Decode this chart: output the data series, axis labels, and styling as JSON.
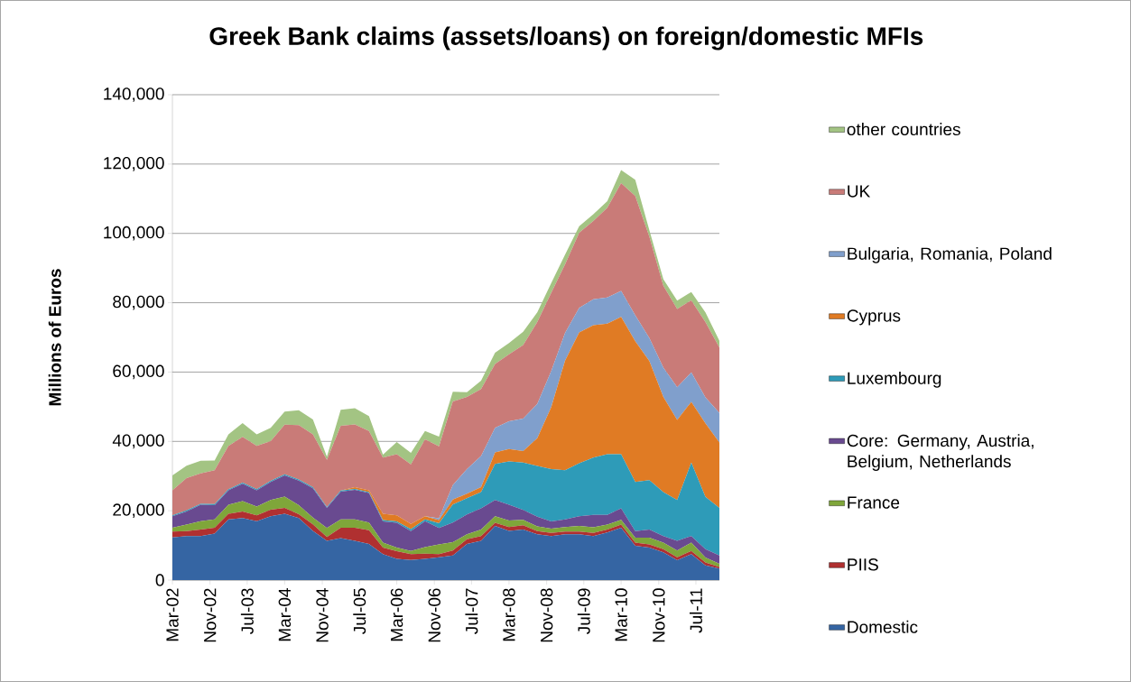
{
  "chart_data": {
    "type": "area",
    "stacked": true,
    "title": "Greek Bank claims (assets/loans) on foreign/domestic MFIs",
    "ylabel": "Millions of Euros",
    "x": [
      "2002-03",
      "2002-06",
      "2002-09",
      "2002-12",
      "2003-03",
      "2003-06",
      "2003-09",
      "2003-12",
      "2004-03",
      "2004-06",
      "2004-09",
      "2004-12",
      "2005-03",
      "2005-06",
      "2005-09",
      "2005-12",
      "2006-03",
      "2006-06",
      "2006-09",
      "2006-12",
      "2007-03",
      "2007-06",
      "2007-09",
      "2007-12",
      "2008-03",
      "2008-06",
      "2008-09",
      "2008-12",
      "2009-03",
      "2009-06",
      "2009-09",
      "2009-12",
      "2010-03",
      "2010-06",
      "2010-09",
      "2010-12",
      "2011-03",
      "2011-06",
      "2011-09",
      "2011-12"
    ],
    "xlim": [
      "2002-03",
      "2011-12"
    ],
    "xticks": [
      {
        "value": "2002-03",
        "label": "Mar-02"
      },
      {
        "value": "2002-11",
        "label": "Nov-02"
      },
      {
        "value": "2003-07",
        "label": "Jul-03"
      },
      {
        "value": "2004-03",
        "label": "Mar-04"
      },
      {
        "value": "2004-11",
        "label": "Nov-04"
      },
      {
        "value": "2005-07",
        "label": "Jul-05"
      },
      {
        "value": "2006-03",
        "label": "Mar-06"
      },
      {
        "value": "2006-11",
        "label": "Nov-06"
      },
      {
        "value": "2007-07",
        "label": "Jul-07"
      },
      {
        "value": "2008-03",
        "label": "Mar-08"
      },
      {
        "value": "2008-11",
        "label": "Nov-08"
      },
      {
        "value": "2009-07",
        "label": "Jul-09"
      },
      {
        "value": "2010-03",
        "label": "Mar-10"
      },
      {
        "value": "2010-11",
        "label": "Nov-10"
      },
      {
        "value": "2011-07",
        "label": "Jul-11"
      }
    ],
    "ylim": [
      0,
      140000
    ],
    "yticks": [
      0,
      {
        "value": 20000,
        "label": "20,000"
      },
      {
        "value": 40000,
        "label": "40,000"
      },
      {
        "value": 60000,
        "label": "60,000"
      },
      {
        "value": 80000,
        "label": "80,000"
      },
      {
        "value": 100000,
        "label": "100,000"
      },
      {
        "value": 120000,
        "label": "120,000"
      },
      {
        "value": 140000,
        "label": "140,000"
      }
    ],
    "grid": "y",
    "legend": "right",
    "series": [
      {
        "name": "Domestic",
        "color": "#3565a3",
        "values": [
          12300,
          12700,
          12700,
          13400,
          17500,
          17900,
          17000,
          18400,
          19100,
          17900,
          14200,
          11300,
          12100,
          11300,
          10400,
          7500,
          6100,
          5800,
          6100,
          6600,
          7100,
          10400,
          11300,
          15600,
          14200,
          14600,
          13200,
          12700,
          13200,
          13200,
          12700,
          13700,
          15100,
          9900,
          9400,
          8000,
          5700,
          7500,
          4200,
          3300
        ]
      },
      {
        "name": "PIIS",
        "color": "#b03030",
        "values": [
          1700,
          1400,
          1900,
          1700,
          1600,
          1900,
          1700,
          1900,
          1700,
          1100,
          1900,
          1100,
          3000,
          3800,
          4000,
          1900,
          2200,
          1700,
          1500,
          900,
          1400,
          1400,
          1400,
          900,
          1100,
          1200,
          900,
          900,
          800,
          800,
          900,
          900,
          900,
          900,
          900,
          900,
          900,
          900,
          900,
          500
        ]
      },
      {
        "name": "France",
        "color": "#7fa63a",
        "values": [
          1100,
          1900,
          2400,
          2400,
          2600,
          3000,
          2500,
          2800,
          3300,
          2600,
          1900,
          2600,
          2400,
          2400,
          2200,
          1400,
          1100,
          900,
          1900,
          2800,
          2400,
          1400,
          1900,
          1900,
          1900,
          1600,
          1400,
          1200,
          1300,
          1600,
          1600,
          1400,
          1400,
          1400,
          1900,
          1900,
          1900,
          2400,
          1400,
          900
        ]
      },
      {
        "name": "Core: Germany, Austria, Belgium, Netherlands",
        "color": "#694a90",
        "values": [
          3300,
          3800,
          4700,
          4100,
          4200,
          5000,
          4700,
          5200,
          6100,
          7100,
          8500,
          5800,
          8000,
          8500,
          8500,
          6100,
          7100,
          5700,
          7500,
          4700,
          5700,
          5700,
          6100,
          4700,
          4500,
          2800,
          2800,
          2100,
          2200,
          2800,
          3600,
          2800,
          3300,
          1900,
          2400,
          1900,
          2800,
          1900,
          2400,
          2400
        ]
      },
      {
        "name": "Luxembourg",
        "color": "#2e9bb8",
        "values": [
          300,
          300,
          300,
          300,
          300,
          300,
          300,
          300,
          300,
          300,
          300,
          300,
          300,
          300,
          300,
          400,
          400,
          600,
          500,
          1400,
          5200,
          4700,
          4700,
          10400,
          12500,
          13700,
          14600,
          15100,
          14200,
          15300,
          16500,
          17500,
          15600,
          14200,
          14200,
          12700,
          11800,
          21200,
          15100,
          13700
        ]
      },
      {
        "name": "Cyprus",
        "color": "#e07b24",
        "values": [
          0,
          0,
          0,
          0,
          0,
          0,
          0,
          0,
          0,
          0,
          0,
          0,
          0,
          500,
          500,
          1800,
          1800,
          1500,
          900,
          900,
          1400,
          1300,
          1400,
          3300,
          3600,
          3300,
          8000,
          17900,
          31600,
          37700,
          38200,
          37700,
          39600,
          40600,
          34400,
          27400,
          23100,
          17500,
          21200,
          18900
        ]
      },
      {
        "name": "Bulgaria, Romania, Poland",
        "color": "#809fcc",
        "values": [
          0,
          0,
          0,
          0,
          0,
          0,
          0,
          0,
          0,
          0,
          0,
          0,
          0,
          0,
          0,
          0,
          0,
          0,
          0,
          500,
          4200,
          7100,
          9000,
          7100,
          8000,
          9400,
          9900,
          10400,
          8000,
          7100,
          7500,
          7500,
          7500,
          7500,
          6600,
          8500,
          9400,
          8500,
          7500,
          8500
        ]
      },
      {
        "name": "UK",
        "color": "#c97b78",
        "values": [
          7200,
          9300,
          8800,
          9800,
          12500,
          13200,
          12500,
          11500,
          14300,
          15700,
          15200,
          13600,
          18700,
          18100,
          17100,
          16200,
          17600,
          17200,
          22200,
          20800,
          24100,
          20800,
          19300,
          18400,
          19300,
          21200,
          23600,
          22600,
          19800,
          21700,
          22600,
          25900,
          31100,
          34400,
          29200,
          23600,
          22600,
          20800,
          21700,
          18900
        ]
      },
      {
        "name": "other countries",
        "color": "#a3c483",
        "values": [
          4300,
          3600,
          3600,
          2800,
          3300,
          4000,
          3300,
          3800,
          3800,
          4300,
          4300,
          900,
          4600,
          4700,
          4300,
          900,
          3500,
          3300,
          2400,
          2800,
          2800,
          1400,
          2400,
          3300,
          3300,
          3800,
          2800,
          2800,
          2800,
          1900,
          1900,
          1900,
          3800,
          4700,
          1900,
          1900,
          2400,
          2400,
          2800,
          1900
        ]
      }
    ]
  }
}
